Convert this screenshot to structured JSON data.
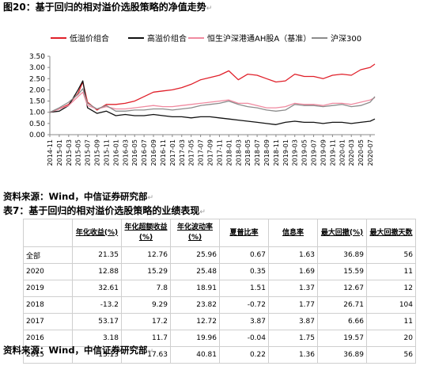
{
  "figure": {
    "title": "图20：基于回归的相对溢价选股策略的净值走势",
    "source": "资料来源：Wind，中信证券研究部"
  },
  "chart_data": {
    "type": "line",
    "title": "",
    "xlabel": "",
    "ylabel": "",
    "ylim": [
      0,
      3.5
    ],
    "yticks": [
      "0.00",
      "0.50",
      "1.00",
      "1.50",
      "2.00",
      "2.50",
      "3.00",
      "3.50"
    ],
    "x_ticks": [
      "2014-11",
      "2015-01",
      "2015-03",
      "2015-05",
      "2015-07",
      "2015-09",
      "2015-11",
      "2016-01",
      "2016-03",
      "2016-05",
      "2016-07",
      "2016-09",
      "2016-11",
      "2017-01",
      "2017-03",
      "2017-05",
      "2017-07",
      "2017-09",
      "2017-11",
      "2018-01",
      "2018-03",
      "2018-05",
      "2018-07",
      "2018-09",
      "2018-11",
      "2019-01",
      "2019-03",
      "2019-05",
      "2019-07",
      "2019-09",
      "2019-11",
      "2020-01",
      "2020-03",
      "2020-05",
      "2020-07"
    ],
    "legend_position": "top",
    "grid": false,
    "x": [
      "2014-11",
      "2015-01",
      "2015-03",
      "2015-05",
      "2015-06",
      "2015-07",
      "2015-09",
      "2015-11",
      "2016-01",
      "2016-03",
      "2016-05",
      "2016-07",
      "2016-09",
      "2016-11",
      "2017-01",
      "2017-03",
      "2017-05",
      "2017-07",
      "2017-09",
      "2017-11",
      "2018-01",
      "2018-03",
      "2018-05",
      "2018-07",
      "2018-09",
      "2018-11",
      "2019-01",
      "2019-03",
      "2019-05",
      "2019-07",
      "2019-09",
      "2019-11",
      "2020-01",
      "2020-03",
      "2020-05",
      "2020-07",
      "2020-08"
    ],
    "series": [
      {
        "name": "低溢价组合",
        "color": "#e0202a",
        "values": [
          1.0,
          1.15,
          1.35,
          1.85,
          2.35,
          1.45,
          1.1,
          1.35,
          1.35,
          1.4,
          1.5,
          1.7,
          1.9,
          1.95,
          2.0,
          2.1,
          2.25,
          2.45,
          2.55,
          2.65,
          2.85,
          2.45,
          2.7,
          2.65,
          2.5,
          2.35,
          2.4,
          2.7,
          2.6,
          2.6,
          2.5,
          2.65,
          2.7,
          2.65,
          2.9,
          3.0,
          3.15
        ]
      },
      {
        "name": "高溢价组合",
        "color": "#111111",
        "values": [
          1.0,
          1.05,
          1.3,
          2.0,
          2.4,
          1.2,
          0.95,
          1.05,
          0.85,
          0.9,
          0.85,
          0.85,
          0.9,
          0.85,
          0.8,
          0.8,
          0.75,
          0.8,
          0.8,
          0.75,
          0.7,
          0.65,
          0.6,
          0.55,
          0.5,
          0.45,
          0.55,
          0.6,
          0.55,
          0.55,
          0.5,
          0.55,
          0.55,
          0.5,
          0.55,
          0.6,
          0.7
        ]
      },
      {
        "name": "恒生沪深港通AH股A（基准）",
        "color": "#f08aa0",
        "values": [
          1.0,
          1.15,
          1.3,
          1.7,
          1.9,
          1.3,
          1.15,
          1.25,
          1.15,
          1.15,
          1.2,
          1.25,
          1.3,
          1.25,
          1.25,
          1.3,
          1.35,
          1.4,
          1.45,
          1.5,
          1.55,
          1.4,
          1.4,
          1.3,
          1.2,
          1.2,
          1.25,
          1.4,
          1.35,
          1.35,
          1.3,
          1.4,
          1.4,
          1.35,
          1.45,
          1.55,
          1.65
        ]
      },
      {
        "name": "沪深300",
        "color": "#8c8c8c",
        "values": [
          1.0,
          1.2,
          1.45,
          1.8,
          2.05,
          1.4,
          1.15,
          1.3,
          1.05,
          1.05,
          1.1,
          1.1,
          1.15,
          1.15,
          1.1,
          1.15,
          1.2,
          1.3,
          1.35,
          1.4,
          1.5,
          1.35,
          1.25,
          1.2,
          1.1,
          1.05,
          1.1,
          1.35,
          1.3,
          1.3,
          1.25,
          1.3,
          1.35,
          1.25,
          1.3,
          1.45,
          1.7
        ]
      }
    ]
  },
  "table": {
    "title": "表7：基于回归的相对溢价选股策略的业绩表现",
    "headers": [
      "",
      "年化收益(%)",
      "年化超额收益(%)",
      "年化波动率(%)",
      "夏普比率",
      "信息率",
      "最大回撤(%)",
      "最大回撤天数"
    ],
    "rows": [
      [
        "全部",
        "21.35",
        "12.76",
        "25.96",
        "0.67",
        "1.63",
        "36.89",
        "56"
      ],
      [
        "2020",
        "12.88",
        "15.29",
        "25.48",
        "0.35",
        "1.69",
        "15.59",
        "11"
      ],
      [
        "2019",
        "32.61",
        "7.8",
        "18.91",
        "1.51",
        "1.37",
        "12.67",
        "12"
      ],
      [
        "2018",
        "-13.2",
        "9.29",
        "23.82",
        "-0.72",
        "1.77",
        "26.71",
        "104"
      ],
      [
        "2017",
        "53.17",
        "17.2",
        "12.72",
        "3.87",
        "3.87",
        "6.66",
        "11"
      ],
      [
        "2016",
        "3.18",
        "11.7",
        "19.96",
        "-0.04",
        "1.75",
        "19.57",
        "20"
      ],
      [
        "2015",
        "13.13",
        "17.63",
        "40.81",
        "0.22",
        "1.36",
        "36.89",
        "56"
      ]
    ],
    "source": "资料来源：Wind，中信证券研究部"
  }
}
